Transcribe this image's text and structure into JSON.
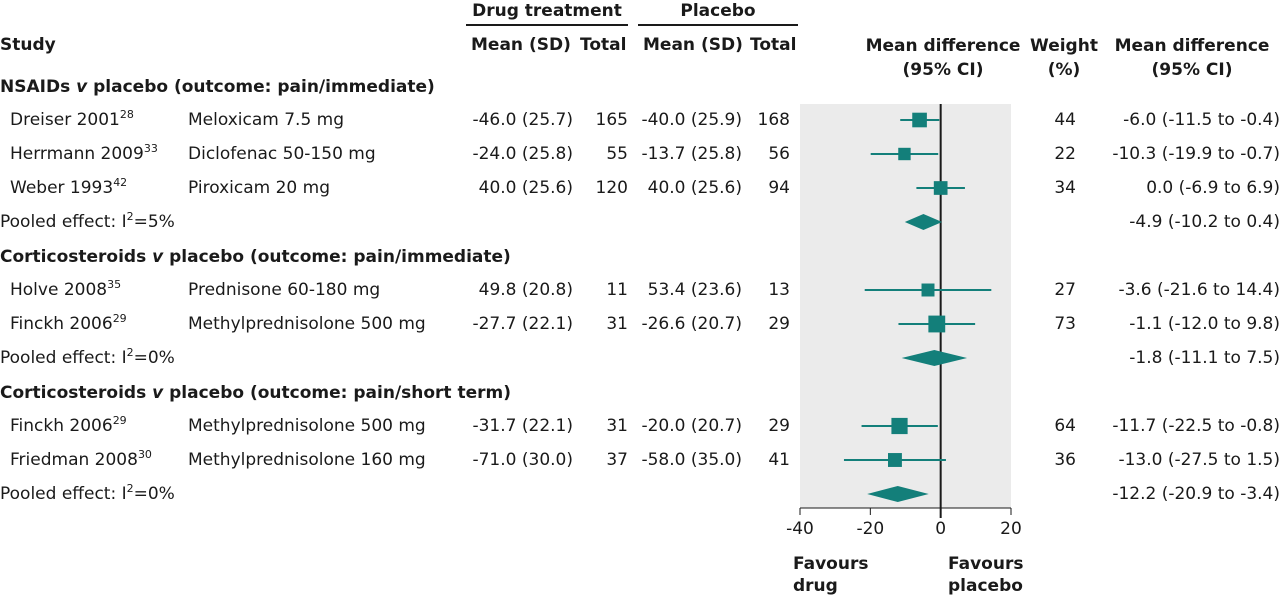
{
  "header": {
    "drug_treatment": "Drug treatment",
    "placebo": "Placebo",
    "study": "Study",
    "mean_sd": "Mean (SD)",
    "total": "Total",
    "md_ci_plot_l1": "Mean difference",
    "md_ci_plot_l2": "(95% CI)",
    "weight_l1": "Weight",
    "weight_l2": "(%)",
    "md_ci_l1": "Mean difference",
    "md_ci_l2": "(95% CI)"
  },
  "footer": {
    "favours_drug_l1": "Favours",
    "favours_drug_l2": "drug",
    "favours_placebo_l1": "Favours",
    "favours_placebo_l2": "placebo"
  },
  "chart_data": {
    "type": "forest",
    "xlim": [
      -40,
      20
    ],
    "xticks": [
      "-40",
      "-20",
      "0",
      "20"
    ],
    "null_line": 0,
    "groups": [
      {
        "title_pre": "NSAIDs ",
        "title_v": "v",
        "title_post": " placebo (outcome: pain/immediate)",
        "studies": [
          {
            "name": "Dreiser 2001",
            "ref": "28",
            "treatment": "Meloxicam 7.5 mg",
            "drug_mean_sd": "-46.0 (25.7)",
            "drug_total": "165",
            "placebo_mean_sd": "-40.0 (25.9)",
            "placebo_total": "168",
            "weight": "44",
            "ci_text": "-6.0 (-11.5 to -0.4)",
            "md": -6.0,
            "lo": -11.5,
            "hi": -0.4,
            "w": 44
          },
          {
            "name": "Herrmann 2009",
            "ref": "33",
            "treatment": "Diclofenac 50-150 mg",
            "drug_mean_sd": "-24.0 (25.8)",
            "drug_total": "55",
            "placebo_mean_sd": "-13.7 (25.8)",
            "placebo_total": "56",
            "weight": "22",
            "ci_text": "-10.3 (-19.9 to -0.7)",
            "md": -10.3,
            "lo": -19.9,
            "hi": -0.7,
            "w": 22
          },
          {
            "name": "Weber 1993",
            "ref": "42",
            "treatment": "Piroxicam 20 mg",
            "drug_mean_sd": "40.0 (25.6)",
            "drug_total": "120",
            "placebo_mean_sd": "40.0 (25.6)",
            "placebo_total": "94",
            "weight": "34",
            "ci_text": "0.0 (-6.9 to 6.9)",
            "md": 0.0,
            "lo": -6.9,
            "hi": 6.9,
            "w": 34
          }
        ],
        "pooled": {
          "label": "Pooled effect: I",
          "sup": "2",
          "rest": "=5%",
          "ci_text": "-4.9 (-10.2 to 0.4)",
          "md": -4.9,
          "lo": -10.2,
          "hi": 0.4
        }
      },
      {
        "title_pre": "Corticosteroids ",
        "title_v": "v",
        "title_post": " placebo (outcome: pain/immediate)",
        "studies": [
          {
            "name": "Holve 2008",
            "ref": "35",
            "treatment": "Prednisone 60-180 mg",
            "drug_mean_sd": "49.8 (20.8)",
            "drug_total": "11",
            "placebo_mean_sd": "53.4 (23.6)",
            "placebo_total": "13",
            "weight": "27",
            "ci_text": "-3.6 (-21.6 to 14.4)",
            "md": -3.6,
            "lo": -21.6,
            "hi": 14.4,
            "w": 27
          },
          {
            "name": "Finckh 2006",
            "ref": "29",
            "treatment": "Methylprednisolone 500 mg",
            "drug_mean_sd": "-27.7 (22.1)",
            "drug_total": "31",
            "placebo_mean_sd": "-26.6 (20.7)",
            "placebo_total": "29",
            "weight": "73",
            "ci_text": "-1.1 (-12.0 to 9.8)",
            "md": -1.1,
            "lo": -12.0,
            "hi": 9.8,
            "w": 73
          }
        ],
        "pooled": {
          "label": "Pooled effect: I",
          "sup": "2",
          "rest": "=0%",
          "ci_text": "-1.8 (-11.1 to 7.5)",
          "md": -1.8,
          "lo": -11.1,
          "hi": 7.5
        }
      },
      {
        "title_pre": "Corticosteroids ",
        "title_v": "v",
        "title_post": " placebo (outcome: pain/short term)",
        "studies": [
          {
            "name": "Finckh 2006",
            "ref": "29",
            "treatment": "Methylprednisolone 500 mg",
            "drug_mean_sd": "-31.7 (22.1)",
            "drug_total": "31",
            "placebo_mean_sd": "-20.0 (20.7)",
            "placebo_total": "29",
            "weight": "64",
            "ci_text": "-11.7 (-22.5 to -0.8)",
            "md": -11.7,
            "lo": -22.5,
            "hi": -0.8,
            "w": 64
          },
          {
            "name": "Friedman 2008",
            "ref": "30",
            "treatment": "Methylprednisolone 160 mg",
            "drug_mean_sd": "-71.0 (30.0)",
            "drug_total": "37",
            "placebo_mean_sd": "-58.0 (35.0)",
            "placebo_total": "41",
            "weight": "36",
            "ci_text": "-13.0 (-27.5 to 1.5)",
            "md": -13.0,
            "lo": -27.5,
            "hi": 1.5,
            "w": 36
          }
        ],
        "pooled": {
          "label": "Pooled effect: I",
          "sup": "2",
          "rest": "=0%",
          "ci_text": "-12.2 (-20.9 to -3.4)",
          "md": -12.2,
          "lo": -20.9,
          "hi": -3.4
        }
      }
    ]
  },
  "colors": {
    "marker": "#137f7a",
    "plot_bg": "#ebebeb",
    "text": "#1a1a1a"
  }
}
